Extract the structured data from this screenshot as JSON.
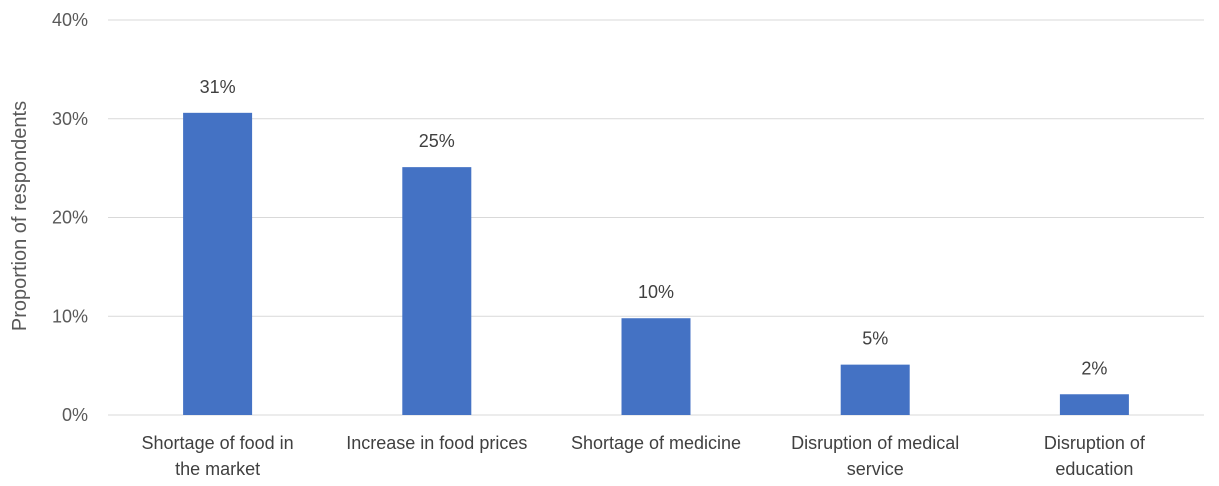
{
  "chart_data": {
    "type": "bar",
    "categories": [
      [
        "Shortage of food in",
        "the market"
      ],
      [
        "Increase in food prices"
      ],
      [
        "Shortage of medicine"
      ],
      [
        "Disruption of medical",
        "service"
      ],
      [
        "Disruption of",
        "education"
      ]
    ],
    "values": [
      30.6,
      25.1,
      9.8,
      5.1,
      2.1
    ],
    "data_labels": [
      "31%",
      "25%",
      "10%",
      "5%",
      "2%"
    ],
    "ylabel": "Proportion of respondents",
    "ylim": [
      0,
      40
    ],
    "yticks": [
      0,
      10,
      20,
      30,
      40
    ],
    "ytick_labels": [
      "0%",
      "10%",
      "20%",
      "30%",
      "40%"
    ],
    "grid": true,
    "bar_color": "#4472C4",
    "grid_color": "#D9D9D9"
  }
}
